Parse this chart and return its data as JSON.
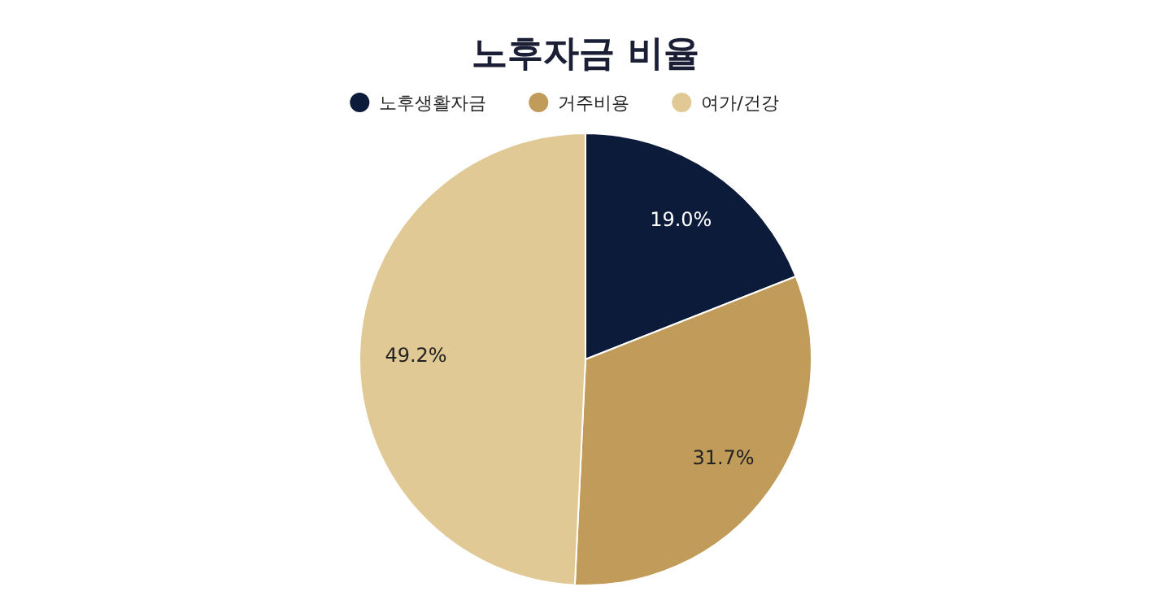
{
  "chart_data": {
    "type": "pie",
    "title": "노후자금 비율",
    "categories": [
      "노후생활자금",
      "거주비용",
      "여가/건강"
    ],
    "values": [
      19.0,
      31.7,
      49.2
    ],
    "colors": [
      "#0d1b3a",
      "#c09b5a",
      "#e0c994"
    ],
    "value_labels": [
      "19.0%",
      "31.7%",
      "49.2%"
    ],
    "legend": "top"
  }
}
